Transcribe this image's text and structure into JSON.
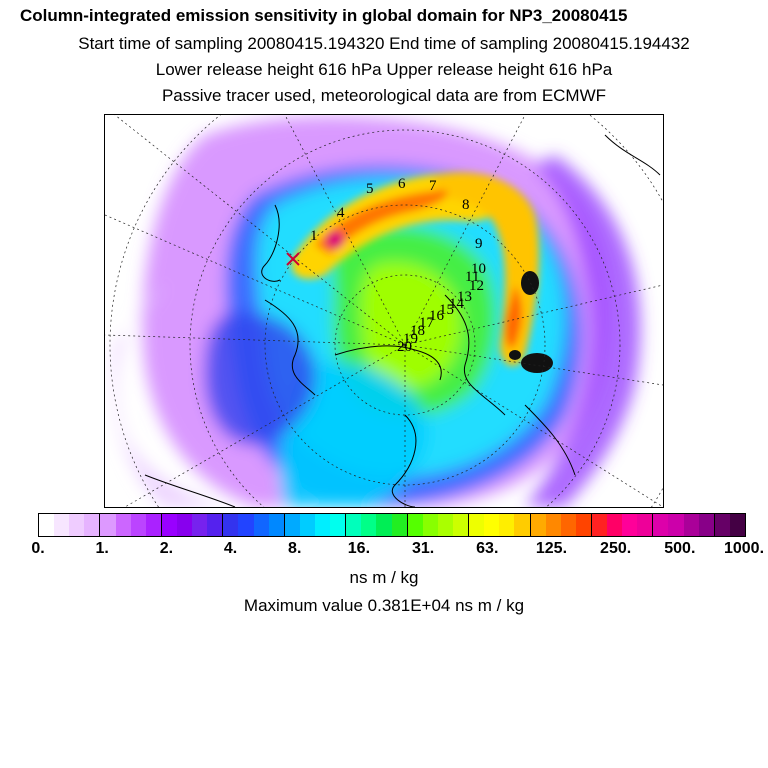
{
  "header": {
    "title": "Column-integrated emission sensitivity in global domain for NP3_20080415",
    "sampling": "Start time of sampling 20080415.194320     End time of sampling 20080415.194432",
    "release": "Lower release height  616 hPa        Upper release height  616 hPa",
    "tracer": "Passive tracer used, meteorological data are from ECMWF"
  },
  "map": {
    "trajectory_labels": [
      "1",
      "4",
      "5",
      "6",
      "7",
      "8",
      "9",
      "10",
      "11",
      "12",
      "13",
      "14",
      "15",
      "16",
      "17",
      "18",
      "19",
      "20"
    ],
    "projection": "polar stereographic (north pole)"
  },
  "colorbar": {
    "colors": [
      "#ffffff",
      "#f7e6ff",
      "#efccff",
      "#e6b3ff",
      "#dd99ff",
      "#cc66ff",
      "#bb44ff",
      "#aa22ff",
      "#9900ff",
      "#8800ee",
      "#7722ee",
      "#5522ee",
      "#3333ee",
      "#2244ff",
      "#1166ff",
      "#0088ff",
      "#00aaff",
      "#00ccff",
      "#00eeff",
      "#00ffee",
      "#00ffbb",
      "#00ff88",
      "#00ee55",
      "#22ee22",
      "#55ff00",
      "#88ff00",
      "#aaff00",
      "#ccff00",
      "#eeff00",
      "#ffff00",
      "#ffee00",
      "#ffcc00",
      "#ffaa00",
      "#ff8800",
      "#ff6600",
      "#ff4400",
      "#ff2222",
      "#ff0066",
      "#ff0099",
      "#ee0099",
      "#dd00aa",
      "#cc00aa",
      "#aa0099",
      "#880088",
      "#660066",
      "#440044"
    ],
    "tick_labels": [
      "0.",
      "1.",
      "2.",
      "4.",
      "8.",
      "16.",
      "31.",
      "63.",
      "125.",
      "250.",
      "500.",
      "1000."
    ],
    "unit": "ns m / kg"
  },
  "max_value_text": "Maximum value  0.381E+04 ns m / kg"
}
